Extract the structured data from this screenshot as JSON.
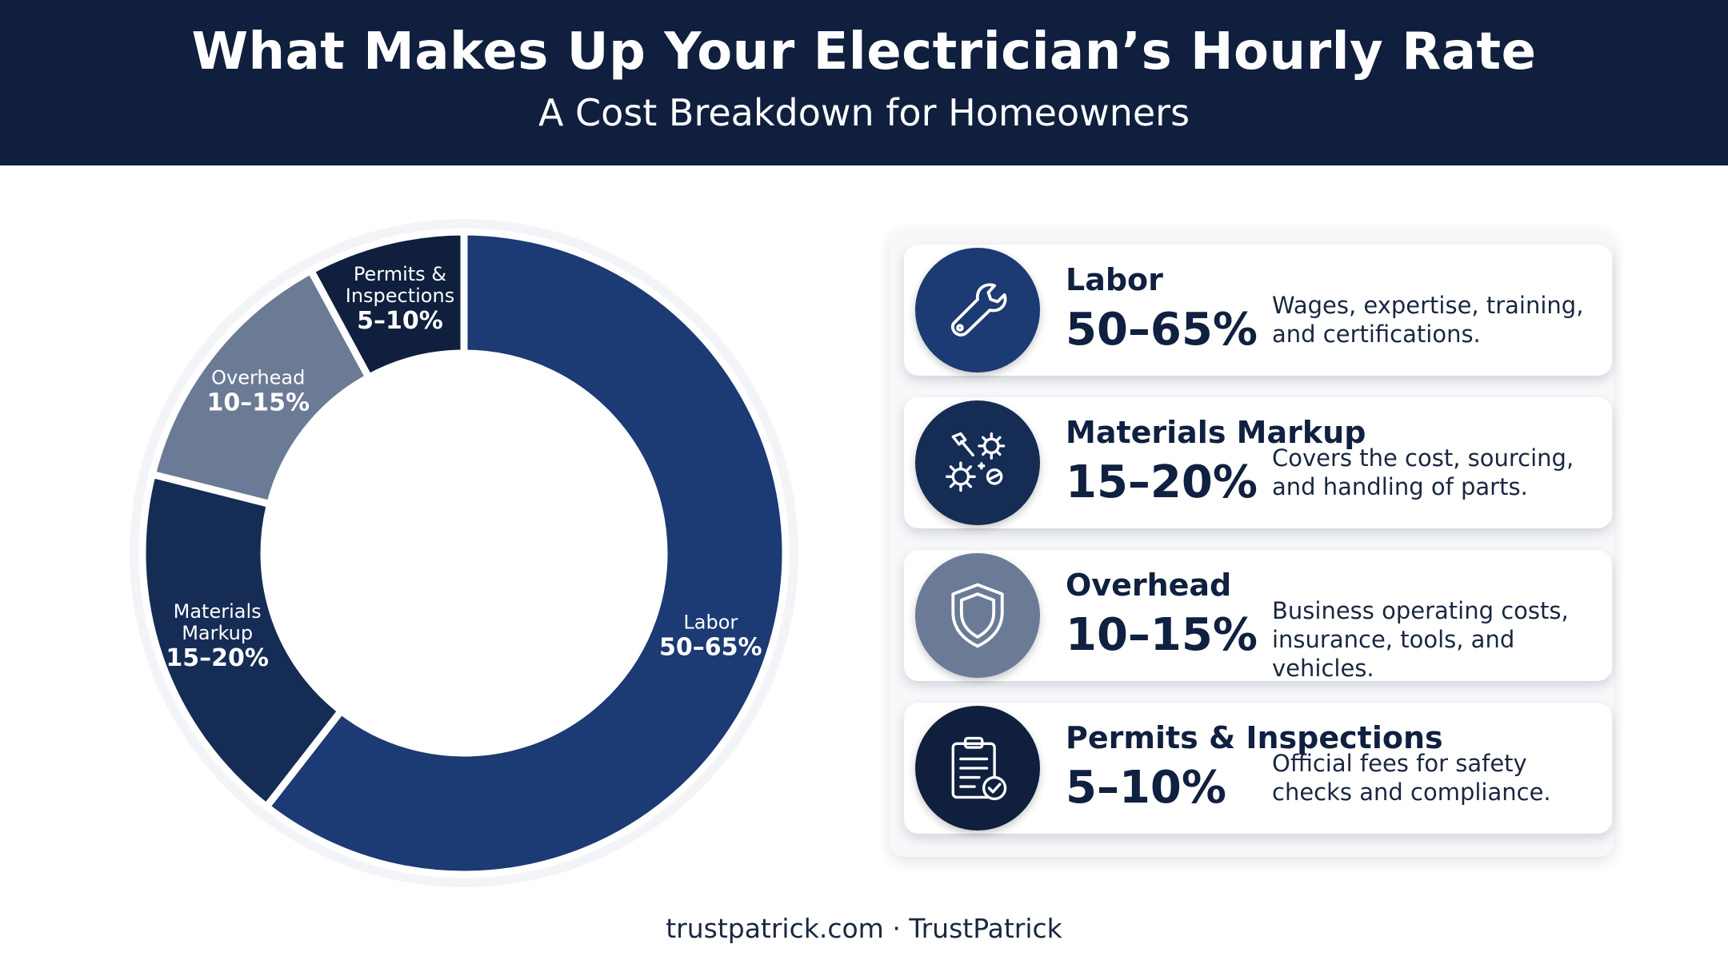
{
  "header": {
    "title": "What Makes Up Your Electrician’s Hourly Rate",
    "subtitle": "A Cost Breakdown for Homeowners"
  },
  "chart_data": {
    "type": "pie",
    "title": "What Makes Up Your Electrician’s Hourly Rate",
    "subtitle": "A Cost Breakdown for Homeowners",
    "slices": [
      {
        "label": "Labor",
        "label_lines": [
          "Labor"
        ],
        "range_text": "50–65%",
        "value": 57.5,
        "color": "#1c3a73"
      },
      {
        "label": "Materials Markup",
        "label_lines": [
          "Materials",
          "Markup"
        ],
        "range_text": "15–20%",
        "value": 17.5,
        "color": "#152c55"
      },
      {
        "label": "Overhead",
        "label_lines": [
          "Overhead"
        ],
        "range_text": "10–15%",
        "value": 12.5,
        "color": "#6b7a95"
      },
      {
        "label": "Permits & Inspections",
        "label_lines": [
          "Permits &",
          "Inspections"
        ],
        "range_text": "5–10%",
        "value": 7.5,
        "color": "#0f1f3d"
      }
    ],
    "order": "clockwise from top"
  },
  "cards": [
    {
      "name": "Labor",
      "pct": "50–65%",
      "desc": "Wages, expertise, training, and certifications.",
      "icon": "wrench-icon",
      "circle_color": "#1c3a73"
    },
    {
      "name": "Materials Markup",
      "pct": "15–20%",
      "desc": "Covers the cost, sourcing, and handling of parts.",
      "icon": "tools-gears-icon",
      "circle_color": "#152c55"
    },
    {
      "name": "Overhead",
      "pct": "10–15%",
      "desc": "Business operating costs, insurance, tools, and vehicles.",
      "icon": "shield-icon",
      "circle_color": "#6b7a95"
    },
    {
      "name": "Permits & Inspections",
      "pct": "5–10%",
      "desc": "Official fees for safety checks and compliance.",
      "icon": "clipboard-check-icon",
      "circle_color": "#0f1f3d"
    }
  ],
  "footer": {
    "text": "trustpatrick.com · TrustPatrick"
  }
}
